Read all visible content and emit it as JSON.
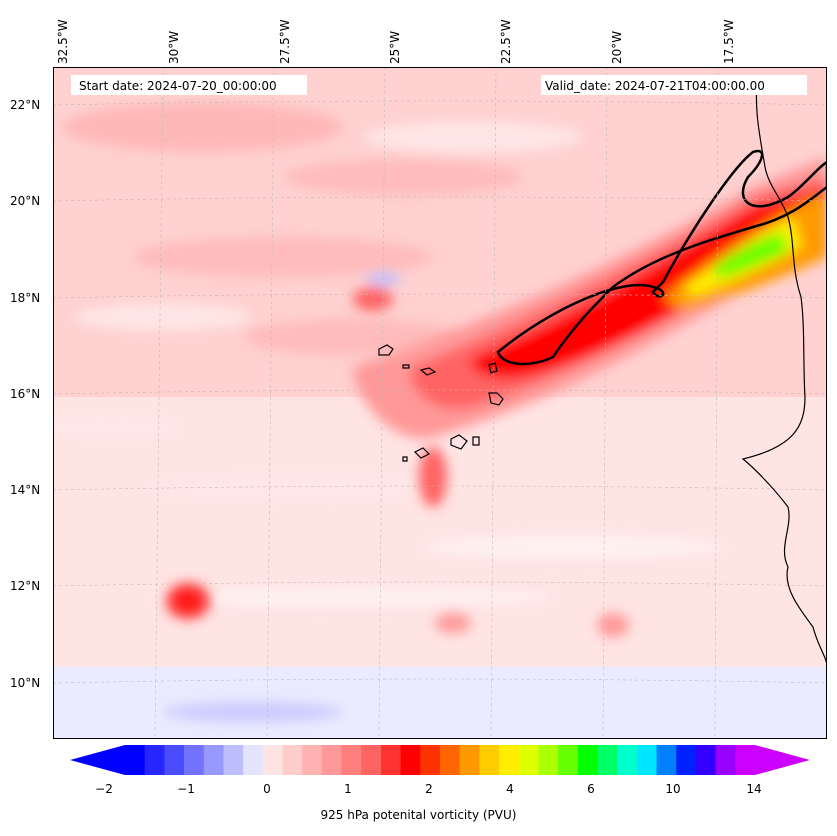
{
  "map": {
    "start_date": "Start date: 2024-07-20_00:00:00",
    "valid_date": "Valid_date: 2024-07-21T04:00:00.00",
    "lon_labels": [
      "32.5°W",
      "30°W",
      "27.5°W",
      "25°W",
      "22.5°W",
      "20°W",
      "17.5°W"
    ],
    "lat_labels": [
      "22°N",
      "20°N",
      "18°N",
      "16°N",
      "14°N",
      "12°N",
      "10°N"
    ],
    "extent": {
      "lon_min": -33.0,
      "lon_max": -15.0,
      "lat_min": 8.8,
      "lat_max": 22.8
    },
    "variable": "925 hPa potenital vorticity (PVU)"
  },
  "colorbar": {
    "label": "925 hPa potenital vorticity (PVU)",
    "ticks": [
      "−2",
      "−1",
      "0",
      "1",
      "2",
      "4",
      "6",
      "10",
      "14"
    ],
    "colors": [
      "#0000ff",
      "#2626ff",
      "#4c4cff",
      "#7272ff",
      "#9898ff",
      "#bebeff",
      "#e4e4ff",
      "#ffe4e4",
      "#ffcccc",
      "#ffb2b2",
      "#ff9898",
      "#ff7e7e",
      "#ff6464",
      "#ff3232",
      "#ff0000",
      "#ff3300",
      "#ff6600",
      "#ff9900",
      "#ffcc00",
      "#ffee00",
      "#ddff00",
      "#aaff00",
      "#66ff00",
      "#00ff00",
      "#00ff66",
      "#00ffcc",
      "#00e5ff",
      "#0080ff",
      "#0022ff",
      "#3300ff",
      "#9900ff",
      "#cc00ff"
    ]
  },
  "colors": {
    "land_line": "#000000",
    "contour": "#000000",
    "grid": "#bbbbbb"
  }
}
